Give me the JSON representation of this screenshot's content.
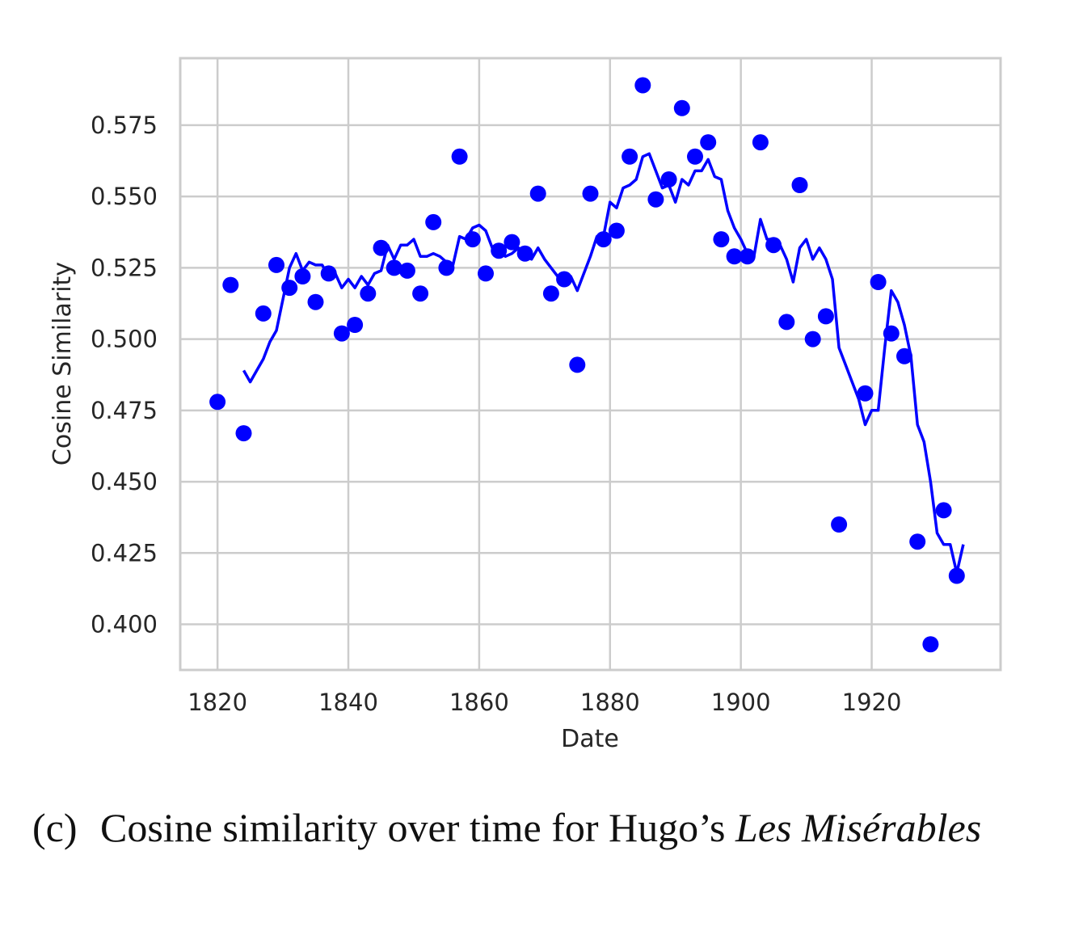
{
  "chart_data": {
    "type": "scatter",
    "xlabel": "Date",
    "ylabel": "Cosine Similarity",
    "xlim": [
      1814.3,
      1939.7
    ],
    "ylim": [
      0.384,
      0.5985
    ],
    "xticks": [
      "1820",
      "1840",
      "1860",
      "1880",
      "1900",
      "1920"
    ],
    "yticks": [
      "0.400",
      "0.425",
      "0.450",
      "0.475",
      "0.500",
      "0.525",
      "0.550",
      "0.575"
    ],
    "grid": true,
    "color": "#0000ff",
    "series": [
      {
        "kind": "points",
        "points": [
          [
            1820,
            0.478
          ],
          [
            1822,
            0.519
          ],
          [
            1824,
            0.467
          ],
          [
            1827,
            0.509
          ],
          [
            1829,
            0.526
          ],
          [
            1831,
            0.518
          ],
          [
            1833,
            0.522
          ],
          [
            1835,
            0.513
          ],
          [
            1837,
            0.523
          ],
          [
            1839,
            0.502
          ],
          [
            1841,
            0.505
          ],
          [
            1843,
            0.516
          ],
          [
            1845,
            0.532
          ],
          [
            1847,
            0.525
          ],
          [
            1849,
            0.524
          ],
          [
            1851,
            0.516
          ],
          [
            1853,
            0.541
          ],
          [
            1855,
            0.525
          ],
          [
            1857,
            0.564
          ],
          [
            1859,
            0.535
          ],
          [
            1861,
            0.523
          ],
          [
            1863,
            0.531
          ],
          [
            1865,
            0.534
          ],
          [
            1867,
            0.53
          ],
          [
            1869,
            0.551
          ],
          [
            1871,
            0.516
          ],
          [
            1873,
            0.521
          ],
          [
            1875,
            0.491
          ],
          [
            1877,
            0.551
          ],
          [
            1879,
            0.535
          ],
          [
            1881,
            0.538
          ],
          [
            1883,
            0.564
          ],
          [
            1885,
            0.589
          ],
          [
            1887,
            0.549
          ],
          [
            1889,
            0.556
          ],
          [
            1891,
            0.581
          ],
          [
            1893,
            0.564
          ],
          [
            1895,
            0.569
          ],
          [
            1897,
            0.535
          ],
          [
            1899,
            0.529
          ],
          [
            1901,
            0.529
          ],
          [
            1903,
            0.569
          ],
          [
            1905,
            0.533
          ],
          [
            1907,
            0.506
          ],
          [
            1909,
            0.554
          ],
          [
            1911,
            0.5
          ],
          [
            1913,
            0.508
          ],
          [
            1915,
            0.435
          ],
          [
            1919,
            0.481
          ],
          [
            1921,
            0.52
          ],
          [
            1923,
            0.502
          ],
          [
            1925,
            0.494
          ],
          [
            1927,
            0.429
          ],
          [
            1929,
            0.393
          ],
          [
            1931,
            0.44
          ],
          [
            1933,
            0.417
          ]
        ]
      },
      {
        "kind": "line",
        "points": [
          [
            1824,
            0.489
          ],
          [
            1825,
            0.485
          ],
          [
            1826,
            0.489
          ],
          [
            1827,
            0.493
          ],
          [
            1828,
            0.499
          ],
          [
            1829,
            0.503
          ],
          [
            1830,
            0.514
          ],
          [
            1831,
            0.525
          ],
          [
            1832,
            0.53
          ],
          [
            1833,
            0.524
          ],
          [
            1834,
            0.527
          ],
          [
            1835,
            0.526
          ],
          [
            1836,
            0.526
          ],
          [
            1837,
            0.522
          ],
          [
            1838,
            0.523
          ],
          [
            1839,
            0.518
          ],
          [
            1840,
            0.521
          ],
          [
            1841,
            0.518
          ],
          [
            1842,
            0.522
          ],
          [
            1843,
            0.519
          ],
          [
            1844,
            0.523
          ],
          [
            1845,
            0.524
          ],
          [
            1846,
            0.533
          ],
          [
            1847,
            0.528
          ],
          [
            1848,
            0.533
          ],
          [
            1849,
            0.533
          ],
          [
            1850,
            0.535
          ],
          [
            1851,
            0.529
          ],
          [
            1852,
            0.529
          ],
          [
            1853,
            0.53
          ],
          [
            1854,
            0.529
          ],
          [
            1855,
            0.527
          ],
          [
            1856,
            0.526
          ],
          [
            1857,
            0.536
          ],
          [
            1858,
            0.535
          ],
          [
            1859,
            0.539
          ],
          [
            1860,
            0.54
          ],
          [
            1861,
            0.538
          ],
          [
            1862,
            0.532
          ],
          [
            1863,
            0.532
          ],
          [
            1864,
            0.529
          ],
          [
            1865,
            0.53
          ],
          [
            1866,
            0.532
          ],
          [
            1867,
            0.529
          ],
          [
            1868,
            0.528
          ],
          [
            1869,
            0.532
          ],
          [
            1870,
            0.528
          ],
          [
            1871,
            0.525
          ],
          [
            1872,
            0.522
          ],
          [
            1873,
            0.52
          ],
          [
            1874,
            0.522
          ],
          [
            1875,
            0.517
          ],
          [
            1876,
            0.523
          ],
          [
            1877,
            0.529
          ],
          [
            1878,
            0.536
          ],
          [
            1879,
            0.536
          ],
          [
            1880,
            0.548
          ],
          [
            1881,
            0.546
          ],
          [
            1882,
            0.553
          ],
          [
            1883,
            0.554
          ],
          [
            1884,
            0.556
          ],
          [
            1885,
            0.564
          ],
          [
            1886,
            0.565
          ],
          [
            1887,
            0.559
          ],
          [
            1888,
            0.553
          ],
          [
            1889,
            0.554
          ],
          [
            1890,
            0.548
          ],
          [
            1891,
            0.556
          ],
          [
            1892,
            0.554
          ],
          [
            1893,
            0.559
          ],
          [
            1894,
            0.559
          ],
          [
            1895,
            0.563
          ],
          [
            1896,
            0.557
          ],
          [
            1897,
            0.556
          ],
          [
            1898,
            0.545
          ],
          [
            1899,
            0.539
          ],
          [
            1900,
            0.535
          ],
          [
            1901,
            0.53
          ],
          [
            1902,
            0.529
          ],
          [
            1903,
            0.542
          ],
          [
            1904,
            0.535
          ],
          [
            1905,
            0.535
          ],
          [
            1906,
            0.533
          ],
          [
            1907,
            0.528
          ],
          [
            1908,
            0.52
          ],
          [
            1909,
            0.532
          ],
          [
            1910,
            0.535
          ],
          [
            1911,
            0.528
          ],
          [
            1912,
            0.532
          ],
          [
            1913,
            0.528
          ],
          [
            1914,
            0.521
          ],
          [
            1915,
            0.497
          ],
          [
            1916,
            0.491
          ],
          [
            1917,
            0.485
          ],
          [
            1918,
            0.479
          ],
          [
            1919,
            0.47
          ],
          [
            1920,
            0.475
          ],
          [
            1921,
            0.475
          ],
          [
            1922,
            0.497
          ],
          [
            1923,
            0.517
          ],
          [
            1924,
            0.513
          ],
          [
            1925,
            0.505
          ],
          [
            1926,
            0.494
          ],
          [
            1927,
            0.47
          ],
          [
            1928,
            0.464
          ],
          [
            1929,
            0.45
          ],
          [
            1930,
            0.432
          ],
          [
            1931,
            0.428
          ],
          [
            1932,
            0.428
          ],
          [
            1933,
            0.418
          ],
          [
            1934,
            0.428
          ]
        ]
      }
    ]
  },
  "caption": {
    "tag": "(c)",
    "text": "Cosine similarity over time for Hugo’s ",
    "emphasis": "Les Misérables"
  }
}
